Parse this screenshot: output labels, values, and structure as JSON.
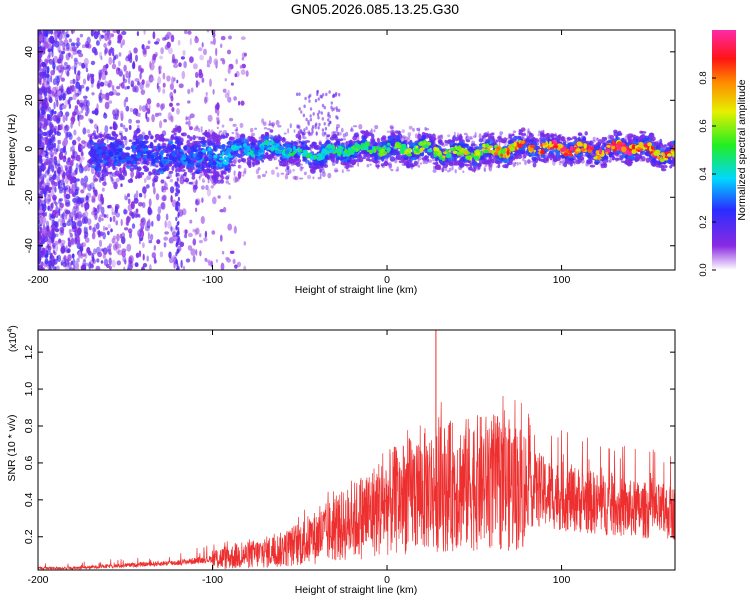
{
  "title": "GN05.2026.085.13.25.G30",
  "colors": {
    "snr_line": "#ee2f2f",
    "axis": "#000000"
  },
  "chart_data": [
    {
      "type": "heatmap",
      "title": "GN05.2026.085.13.25.G30",
      "xlabel": "Height of straight line (km)",
      "ylabel": "Frequency (Hz)",
      "xlim": [
        -200,
        165
      ],
      "ylim": [
        -50,
        49
      ],
      "x_ticks": [
        "-200",
        "-100",
        "0",
        "100"
      ],
      "y_ticks": [
        "40",
        "20",
        "0",
        "-20",
        "-40"
      ],
      "colorbar": {
        "label": "Normalized spectral amplitude",
        "range": [
          0,
          1
        ],
        "ticks": [
          "0.0",
          "0.2",
          "0.4",
          "0.6",
          "0.8"
        ],
        "colormap": "rainbow (white-violet-blue-cyan-green-yellow-orange-red-magenta)"
      },
      "ridge": {
        "description": "narrow signal band near 0 Hz across the full height range; scattered noise below -100 km",
        "points": [
          {
            "x": -160,
            "freq": -2,
            "amp": 0.25
          },
          {
            "x": -120,
            "freq": -3,
            "amp": 0.3
          },
          {
            "x": -100,
            "freq": -4,
            "amp": 0.35
          },
          {
            "x": -80,
            "freq": 0,
            "amp": 0.4
          },
          {
            "x": -60,
            "freq": 0,
            "amp": 0.45
          },
          {
            "x": -45,
            "freq": -3,
            "amp": 0.45
          },
          {
            "x": -20,
            "freq": 0,
            "amp": 0.5
          },
          {
            "x": 0,
            "freq": 0,
            "amp": 0.55
          },
          {
            "x": 20,
            "freq": 0,
            "amp": 0.6
          },
          {
            "x": 40,
            "freq": -2,
            "amp": 0.65
          },
          {
            "x": 60,
            "freq": -1,
            "amp": 0.7
          },
          {
            "x": 80,
            "freq": 1,
            "amp": 0.85
          },
          {
            "x": 100,
            "freq": 0,
            "amp": 0.88
          },
          {
            "x": 120,
            "freq": -1,
            "amp": 0.9
          },
          {
            "x": 140,
            "freq": 1,
            "amp": 0.92
          },
          {
            "x": 160,
            "freq": -2,
            "amp": 0.85
          }
        ]
      }
    },
    {
      "type": "line",
      "xlabel": "Height of straight line (km)",
      "ylabel": "SNR (10 * v/v)",
      "y_multiplier_label": "(x10",
      "y_multiplier_exp": "4",
      "xlim": [
        -200,
        165
      ],
      "ylim": [
        0.02,
        1.32
      ],
      "x_ticks": [
        "-200",
        "-100",
        "0",
        "100"
      ],
      "y_ticks": [
        "1.2",
        "1.0",
        "0.8",
        "0.6",
        "0.4",
        "0.2"
      ],
      "series": [
        {
          "x": [
            -200,
            -180,
            -160,
            -140,
            -120,
            -100,
            -80,
            -60,
            -40,
            -20,
            0,
            20,
            28,
            40,
            60,
            80,
            100,
            120,
            140,
            165
          ],
          "y": [
            0.03,
            0.03,
            0.04,
            0.05,
            0.06,
            0.08,
            0.1,
            0.13,
            0.2,
            0.28,
            0.38,
            0.45,
            1.32,
            0.48,
            0.5,
            0.46,
            0.42,
            0.38,
            0.35,
            0.33
          ]
        }
      ]
    }
  ]
}
